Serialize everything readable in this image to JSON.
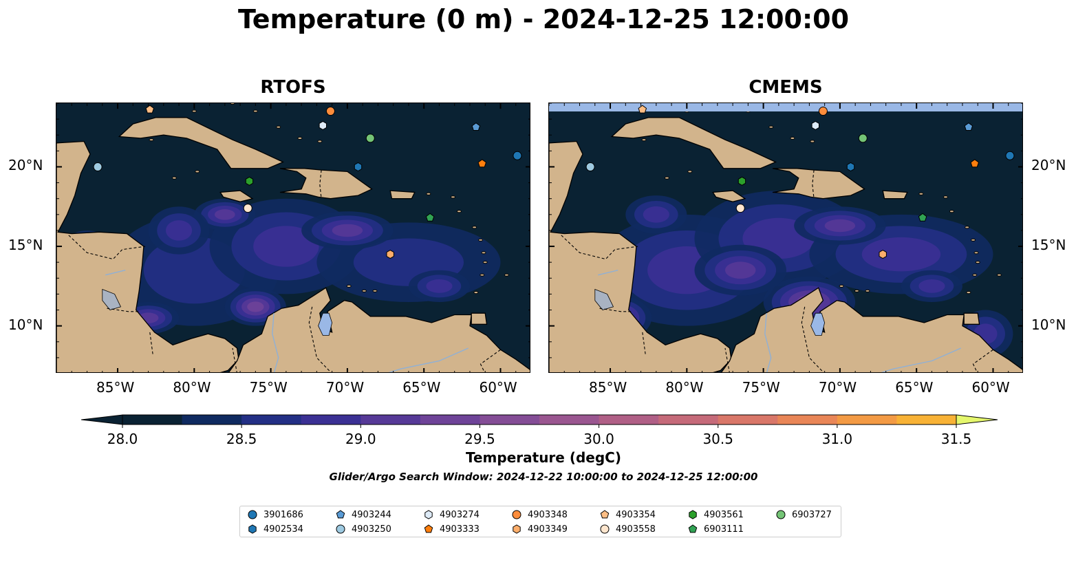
{
  "title": "Temperature (0 m) - 2024-12-25 12:00:00",
  "panels": [
    {
      "title": "RTOFS"
    },
    {
      "title": "CMEMS"
    }
  ],
  "lon_ticks": [
    "85°W",
    "80°W",
    "75°W",
    "70°W",
    "65°W",
    "60°W"
  ],
  "lat_ticks": [
    "20°N",
    "15°N",
    "10°N"
  ],
  "map_extent": {
    "lon": [
      -89,
      -58
    ],
    "lat": [
      7,
      24
    ]
  },
  "colorbar": {
    "label": "Temperature (degC)",
    "ticks": [
      "28.0",
      "28.5",
      "29.0",
      "29.5",
      "30.0",
      "30.5",
      "31.0",
      "31.5"
    ],
    "min": 28.0,
    "max": 31.5,
    "step": 0.25,
    "colors": [
      "#0f2a60",
      "#232f85",
      "#3b3094",
      "#563997",
      "#6e4398",
      "#844d96",
      "#9a5690",
      "#b05f86",
      "#c56a79",
      "#d97769",
      "#e98657",
      "#f39a44",
      "#f8b236",
      "#f9ce39",
      "#f4ec5c"
    ],
    "under_color": "#0a2233",
    "over_color": "#e5f76d"
  },
  "search_window": "Glider/Argo Search Window: 2024-12-22 10:00:00 to 2024-12-25 12:00:00",
  "land_color": "#d2b48c",
  "ocean_deep_color": "#0a2233",
  "floats": [
    {
      "id": "3901686",
      "marker": "circle",
      "color": "#1f77b4",
      "lon": -58.9,
      "lat": 20.7
    },
    {
      "id": "4902534",
      "marker": "hexagon",
      "color": "#1f77b4",
      "lon": -69.3,
      "lat": 20.0
    },
    {
      "id": "4903244",
      "marker": "pentagon",
      "color": "#5a9bd5",
      "lon": -61.6,
      "lat": 22.5
    },
    {
      "id": "4903250",
      "marker": "circle",
      "color": "#9ecae1",
      "lon": -86.3,
      "lat": 20.0
    },
    {
      "id": "4903274",
      "marker": "hexagon",
      "color": "#deebf7",
      "lon": -71.6,
      "lat": 22.6
    },
    {
      "id": "4903333",
      "marker": "pentagon",
      "color": "#ff7f0e",
      "lon": -61.2,
      "lat": 20.2
    },
    {
      "id": "4903348",
      "marker": "circle",
      "color": "#fd8d3c",
      "lon": -71.1,
      "lat": 23.5
    },
    {
      "id": "4903349",
      "marker": "hexagon",
      "color": "#fdae6b",
      "lon": -67.2,
      "lat": 14.5
    },
    {
      "id": "4903354",
      "marker": "pentagon",
      "color": "#fdbe85",
      "lon": -82.9,
      "lat": 23.6
    },
    {
      "id": "4903558",
      "marker": "circle",
      "color": "#fee6ce",
      "lon": -76.5,
      "lat": 17.4
    },
    {
      "id": "4903561",
      "marker": "hexagon",
      "color": "#2ca02c",
      "lon": -76.4,
      "lat": 19.1
    },
    {
      "id": "6903111",
      "marker": "pentagon",
      "color": "#31a354",
      "lon": -64.6,
      "lat": 16.8
    },
    {
      "id": "6903727",
      "marker": "circle",
      "color": "#74c476",
      "lon": -68.5,
      "lat": 21.8
    }
  ]
}
